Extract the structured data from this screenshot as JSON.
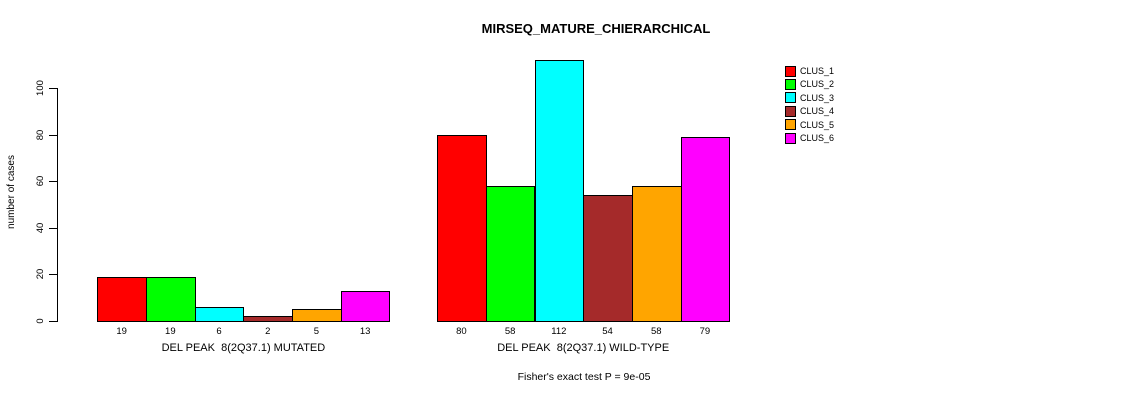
{
  "title": "MIRSEQ_MATURE_CHIERARCHICAL",
  "footer": "Fisher's exact test P = 9e-05",
  "chart_data": {
    "type": "bar",
    "title": "MIRSEQ_MATURE_CHIERARCHICAL",
    "xlabel": "",
    "ylabel": "number of cases",
    "yticks": [
      0,
      20,
      40,
      60,
      80,
      100
    ],
    "ylim": [
      0,
      113
    ],
    "grid": false,
    "legend_position": "right",
    "categories": [
      "DEL PEAK  8(2Q37.1) MUTATED",
      "DEL PEAK  8(2Q37.1) WILD-TYPE"
    ],
    "series": [
      {
        "name": "CLUS_1",
        "color": "#FF0000",
        "values": [
          19,
          80
        ]
      },
      {
        "name": "CLUS_2",
        "color": "#00FF00",
        "values": [
          19,
          58
        ]
      },
      {
        "name": "CLUS_3",
        "color": "#00FFFF",
        "values": [
          6,
          112
        ]
      },
      {
        "name": "CLUS_4",
        "color": "#A52A2A",
        "values": [
          2,
          54
        ]
      },
      {
        "name": "CLUS_5",
        "color": "#FFA500",
        "values": [
          5,
          58
        ]
      },
      {
        "name": "CLUS_6",
        "color": "#FF00FF",
        "values": [
          13,
          79
        ]
      }
    ],
    "bar_value_labels": [
      [
        19,
        19,
        6,
        2,
        5,
        13
      ],
      [
        80,
        58,
        112,
        54,
        58,
        79
      ]
    ],
    "annotation": "Fisher's exact test P = 9e-05"
  },
  "legend": {
    "items": [
      {
        "label": "CLUS_1",
        "color": "#FF0000"
      },
      {
        "label": "CLUS_2",
        "color": "#00FF00"
      },
      {
        "label": "CLUS_3",
        "color": "#00FFFF"
      },
      {
        "label": "CLUS_4",
        "color": "#A52A2A"
      },
      {
        "label": "CLUS_5",
        "color": "#FFA500"
      },
      {
        "label": "CLUS_6",
        "color": "#FF00FF"
      }
    ]
  }
}
